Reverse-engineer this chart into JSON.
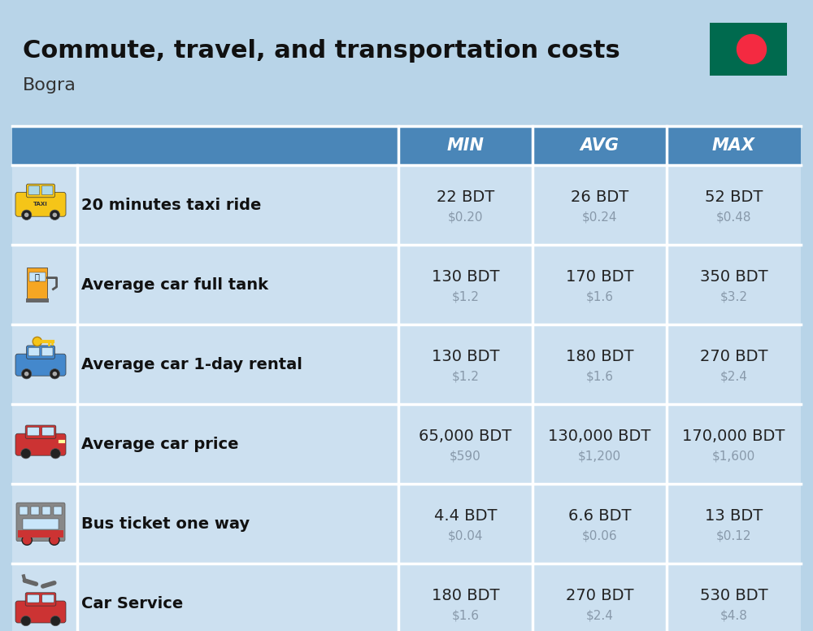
{
  "title": "Commute, travel, and transportation costs",
  "subtitle": "Bogra",
  "bg_color": "#b8d4e8",
  "header_bg": "#4a86b8",
  "header_text_color": "#ffffff",
  "row_bg": "#cce0f0",
  "divider_color": "#ffffff",
  "col_headers": [
    "MIN",
    "AVG",
    "MAX"
  ],
  "rows": [
    {
      "label": "20 minutes taxi ride",
      "min_bdt": "22 BDT",
      "min_usd": "$0.20",
      "avg_bdt": "26 BDT",
      "avg_usd": "$0.24",
      "max_bdt": "52 BDT",
      "max_usd": "$0.48"
    },
    {
      "label": "Average car full tank",
      "min_bdt": "130 BDT",
      "min_usd": "$1.2",
      "avg_bdt": "170 BDT",
      "avg_usd": "$1.6",
      "max_bdt": "350 BDT",
      "max_usd": "$3.2"
    },
    {
      "label": "Average car 1-day rental",
      "min_bdt": "130 BDT",
      "min_usd": "$1.2",
      "avg_bdt": "180 BDT",
      "avg_usd": "$1.6",
      "max_bdt": "270 BDT",
      "max_usd": "$2.4"
    },
    {
      "label": "Average car price",
      "min_bdt": "65,000 BDT",
      "min_usd": "$590",
      "avg_bdt": "130,000 BDT",
      "avg_usd": "$1,200",
      "max_bdt": "170,000 BDT",
      "max_usd": "$1,600"
    },
    {
      "label": "Bus ticket one way",
      "min_bdt": "4.4 BDT",
      "min_usd": "$0.04",
      "avg_bdt": "6.6 BDT",
      "avg_usd": "$0.06",
      "max_bdt": "13 BDT",
      "max_usd": "$0.12"
    },
    {
      "label": "Car Service",
      "min_bdt": "180 BDT",
      "min_usd": "$1.6",
      "avg_bdt": "270 BDT",
      "avg_usd": "$2.4",
      "max_bdt": "530 BDT",
      "max_usd": "$4.8"
    }
  ],
  "flag_green": "#006a4e",
  "flag_red": "#f42a41",
  "text_dark": "#1a1a2e",
  "text_gray": "#8899aa"
}
